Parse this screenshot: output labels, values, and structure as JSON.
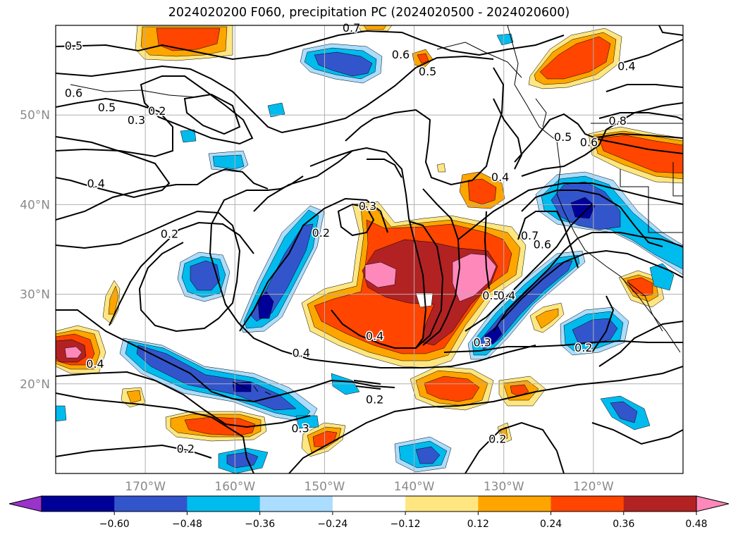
{
  "title": "2024020200 F060, precipitation PC (2024020500 - 2024020600)",
  "map": {
    "lon_range": [
      -180,
      -110
    ],
    "lat_range": [
      10,
      60
    ],
    "lat_ticks": [
      {
        "value": 20,
        "label": "20°N"
      },
      {
        "value": 30,
        "label": "30°N"
      },
      {
        "value": 40,
        "label": "40°N"
      },
      {
        "value": 50,
        "label": "50°N"
      }
    ],
    "lon_ticks": [
      {
        "value": -170,
        "label": "170°W"
      },
      {
        "value": -160,
        "label": "160°W"
      },
      {
        "value": -150,
        "label": "150°W"
      },
      {
        "value": -140,
        "label": "140°W"
      },
      {
        "value": -130,
        "label": "130°W"
      },
      {
        "value": -120,
        "label": "120°W"
      }
    ],
    "grid": true
  },
  "colorbar": {
    "labels": [
      "−0.60",
      "−0.48",
      "−0.36",
      "−0.24",
      "−0.12",
      "0.12",
      "0.24",
      "0.36",
      "0.48",
      "0.60"
    ],
    "colors": [
      "#9933cc",
      "#000099",
      "#3355cc",
      "#00bbee",
      "#aaddff",
      "#ffffff",
      "#ffe680",
      "#ffa500",
      "#ff4500",
      "#b22222",
      "#ff88bb"
    ],
    "extend": "both"
  },
  "colors": {
    "c_lblue": "#aaddff",
    "c_cyan": "#00bbee",
    "c_blue": "#3355cc",
    "c_navy": "#000099",
    "c_yellow": "#ffe680",
    "c_orange": "#ffa500",
    "c_red": "#ff4500",
    "c_dred": "#b22222",
    "c_pink": "#ff88bb"
  },
  "contour_labels": [
    {
      "text": "0.5",
      "lon": -178,
      "lat": 57.7
    },
    {
      "text": "0.7",
      "lon": -147,
      "lat": 59.7
    },
    {
      "text": "0.6",
      "lon": -141.5,
      "lat": 56.7
    },
    {
      "text": "0.5",
      "lon": -138.5,
      "lat": 54.8
    },
    {
      "text": "0.4",
      "lon": -116.3,
      "lat": 55.4
    },
    {
      "text": "0.6",
      "lon": -178,
      "lat": 52.4
    },
    {
      "text": "0.5",
      "lon": -174.3,
      "lat": 50.8
    },
    {
      "text": "0.3",
      "lon": -171,
      "lat": 49.4
    },
    {
      "text": "0.2",
      "lon": -168.7,
      "lat": 50.4
    },
    {
      "text": "0.4",
      "lon": -175.5,
      "lat": 42.3
    },
    {
      "text": "0.4",
      "lon": -130.4,
      "lat": 43.0
    },
    {
      "text": "0.5",
      "lon": -123.4,
      "lat": 47.5
    },
    {
      "text": "0.6",
      "lon": -120.5,
      "lat": 46.9
    },
    {
      "text": "0.8",
      "lon": -117.3,
      "lat": 49.3
    },
    {
      "text": "0.2",
      "lon": -167.3,
      "lat": 36.7
    },
    {
      "text": "0.2",
      "lon": -150.4,
      "lat": 36.8
    },
    {
      "text": "0.3",
      "lon": -145.2,
      "lat": 39.8
    },
    {
      "text": "0.7",
      "lon": -127.1,
      "lat": 36.5
    },
    {
      "text": "0.6",
      "lon": -125.7,
      "lat": 35.5
    },
    {
      "text": "0.5",
      "lon": -131.4,
      "lat": 29.8
    },
    {
      "text": "0.4",
      "lon": -129.7,
      "lat": 29.8
    },
    {
      "text": "0.4",
      "lon": -144.4,
      "lat": 25.3
    },
    {
      "text": "0.3",
      "lon": -132.4,
      "lat": 24.6
    },
    {
      "text": "0.4",
      "lon": -152.6,
      "lat": 23.4
    },
    {
      "text": "0.4",
      "lon": -175.6,
      "lat": 22.2
    },
    {
      "text": "0.2",
      "lon": -121.1,
      "lat": 24.0
    },
    {
      "text": "0.2",
      "lon": -144.4,
      "lat": 18.2
    },
    {
      "text": "0.3",
      "lon": -152.7,
      "lat": 15.0
    },
    {
      "text": "0.2",
      "lon": -165.5,
      "lat": 12.7
    },
    {
      "text": "0.2",
      "lon": -130.7,
      "lat": 13.8
    }
  ]
}
